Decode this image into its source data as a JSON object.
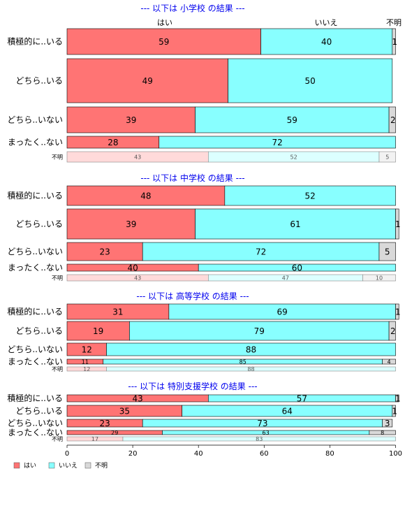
{
  "colors": {
    "yes": "#ff7474",
    "no": "#88ffff",
    "unknown": "#d9d9d9",
    "yes_light": "#ffdada",
    "no_light": "#dcffff",
    "unknown_light": "#f2f2f2"
  },
  "col_headers": [
    "はい",
    "いいえ",
    "不明"
  ],
  "chart_data": [
    {
      "type": "bar",
      "stacked": true,
      "orientation": "horizontal",
      "title": "--- 以下は 小学校 の結果 ---",
      "categories": [
        "積極的に..いる",
        "どちら..いる",
        "どちら..いない",
        "まったく..ない",
        "不明"
      ],
      "series": [
        {
          "name": "はい",
          "values": [
            59,
            49,
            39,
            28,
            43
          ]
        },
        {
          "name": "いいえ",
          "values": [
            40,
            50,
            59,
            72,
            52
          ]
        },
        {
          "name": "不明",
          "values": [
            1,
            0,
            2,
            0,
            5
          ]
        }
      ],
      "labels": [
        [
          "59",
          "40",
          "1"
        ],
        [
          "49",
          "50",
          ""
        ],
        [
          "39",
          "59",
          "2"
        ],
        [
          "28",
          "72",
          ""
        ],
        [
          "43",
          "52",
          "5"
        ]
      ]
    },
    {
      "type": "bar",
      "stacked": true,
      "orientation": "horizontal",
      "title": "--- 以下は 中学校 の結果 ---",
      "categories": [
        "積極的に..いる",
        "どちら..いる",
        "どちら..いない",
        "まったく..ない",
        "不明"
      ],
      "series": [
        {
          "name": "はい",
          "values": [
            48,
            39,
            23,
            40,
            43
          ]
        },
        {
          "name": "いいえ",
          "values": [
            52,
            61,
            72,
            60,
            47
          ]
        },
        {
          "name": "不明",
          "values": [
            0,
            1,
            5,
            0,
            10
          ]
        }
      ],
      "labels": [
        [
          "48",
          "52",
          ""
        ],
        [
          "39",
          "61",
          "1"
        ],
        [
          "23",
          "72",
          "5"
        ],
        [
          "40",
          "60",
          ""
        ],
        [
          "43",
          "47",
          "10"
        ]
      ]
    },
    {
      "type": "bar",
      "stacked": true,
      "orientation": "horizontal",
      "title": "--- 以下は 高等学校 の結果 ---",
      "categories": [
        "積極的に..いる",
        "どちら..いる",
        "どちら..いない",
        "まったく..ない",
        "不明"
      ],
      "series": [
        {
          "name": "はい",
          "values": [
            31,
            19,
            12,
            11,
            12
          ]
        },
        {
          "name": "いいえ",
          "values": [
            69,
            79,
            88,
            85,
            88
          ]
        },
        {
          "name": "不明",
          "values": [
            1,
            2,
            0,
            4,
            0
          ]
        }
      ],
      "labels": [
        [
          "31",
          "69",
          "1"
        ],
        [
          "19",
          "79",
          "2"
        ],
        [
          "12",
          "88",
          ""
        ],
        [
          "11",
          "85",
          "4"
        ],
        [
          "12",
          "88",
          ""
        ]
      ]
    },
    {
      "type": "bar",
      "stacked": true,
      "orientation": "horizontal",
      "title": "--- 以下は 特別支援学校 の結果 ---",
      "categories": [
        "積極的に..いる",
        "どちら..いる",
        "どちら..いない",
        "まったく..ない",
        "不明"
      ],
      "series": [
        {
          "name": "はい",
          "values": [
            43,
            35,
            23,
            29,
            17
          ]
        },
        {
          "name": "いいえ",
          "values": [
            57,
            64,
            73,
            63,
            83
          ]
        },
        {
          "name": "不明",
          "values": [
            1,
            1,
            3,
            8,
            0
          ]
        }
      ],
      "labels": [
        [
          "43",
          "57",
          "1"
        ],
        [
          "35",
          "64",
          "1"
        ],
        [
          "23",
          "73",
          "3"
        ],
        [
          "29",
          "63",
          "8"
        ],
        [
          "17",
          "83",
          ""
        ]
      ]
    }
  ],
  "x_axis": {
    "ticks": [
      "0",
      "20",
      "40",
      "60",
      "80",
      "100"
    ],
    "range": [
      0,
      100
    ]
  },
  "legend": {
    "position": "bottom-left",
    "items": [
      "はい",
      "いいえ",
      "不明"
    ]
  }
}
